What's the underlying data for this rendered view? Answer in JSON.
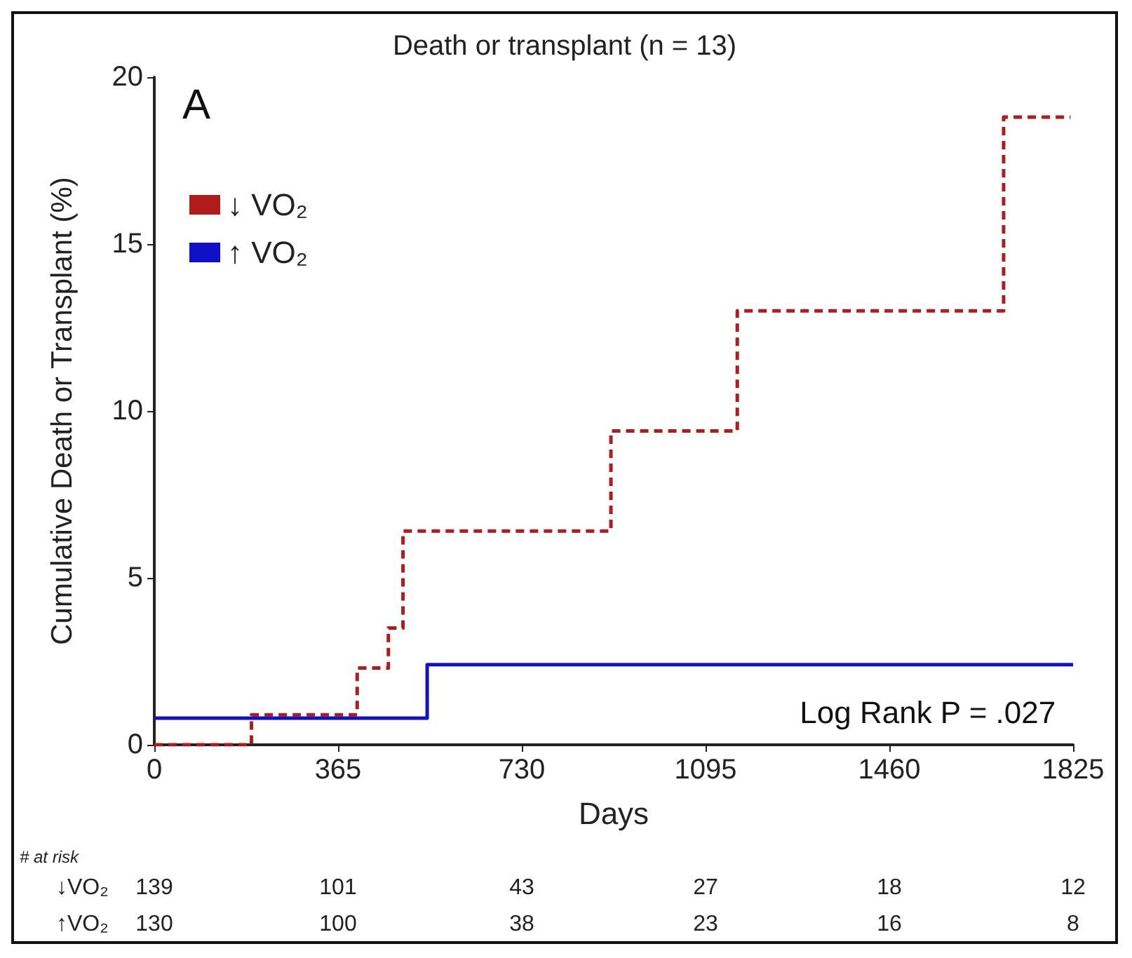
{
  "chart_data": {
    "type": "step",
    "title": "Death or transplant (n = 13)",
    "xlabel": "Days",
    "ylabel": "Cumulative Death or Transplant (%)",
    "xlim": [
      0,
      1825
    ],
    "xticks": [
      0,
      365,
      730,
      1095,
      1460,
      1825
    ],
    "ylim": [
      0,
      20
    ],
    "yticks": [
      0,
      5,
      10,
      15,
      20
    ],
    "grid": false,
    "legend": "top left",
    "marker": "none",
    "series": [
      {
        "name": "↓ VO₂",
        "color": "#b01c1c",
        "line_style": "dashed",
        "x": [
          0,
          193,
          403,
          465,
          494,
          907,
          1158,
          1687,
          1820
        ],
        "values": [
          0,
          0.9,
          2.3,
          3.5,
          6.4,
          9.4,
          13,
          18.8,
          18.8
        ]
      },
      {
        "name": "↑ VO₂",
        "color": "#1010c8",
        "line_style": "solid",
        "x": [
          0,
          542,
          1825
        ],
        "values": [
          0.8,
          2.4,
          2.4
        ]
      }
    ],
    "annotations": [
      "A",
      "Log Rank P = .027",
      "# at risk",
      "↓VO₂ 139 101 43 27 18 12",
      "↑VO₂ 130 100 38 23 16 8"
    ]
  }
}
